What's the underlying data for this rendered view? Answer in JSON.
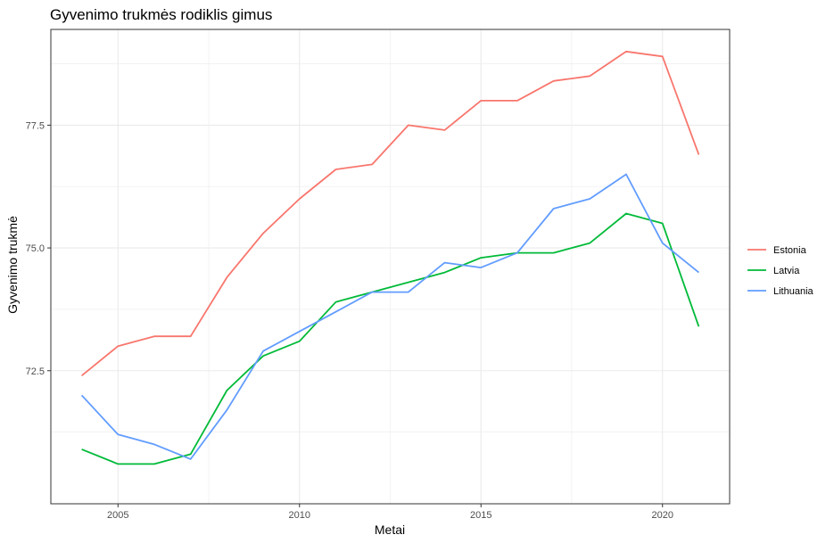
{
  "chart_data": {
    "type": "line",
    "title": "Gyvenimo trukmės rodiklis gimus",
    "xlabel": "Metai",
    "ylabel": "Gyvenimo trukmė",
    "x": [
      2004,
      2005,
      2006,
      2007,
      2008,
      2009,
      2010,
      2011,
      2012,
      2013,
      2014,
      2015,
      2016,
      2017,
      2018,
      2019,
      2020,
      2021
    ],
    "xlim": [
      2003.15,
      2021.85
    ],
    "ylim": [
      69.79,
      79.45
    ],
    "x_ticks": [
      2005,
      2010,
      2015,
      2020
    ],
    "x_tick_labels": [
      "2005",
      "2010",
      "2015",
      "2020"
    ],
    "y_ticks": [
      72.5,
      75.0,
      77.5
    ],
    "y_tick_labels": [
      "72.5",
      "75.0",
      "77.5"
    ],
    "grid": true,
    "legend_position": "right",
    "series": [
      {
        "name": "Estonia",
        "color": "#F8766D",
        "values": [
          72.4,
          73.0,
          73.2,
          73.2,
          74.4,
          75.3,
          76.0,
          76.6,
          76.7,
          77.5,
          77.4,
          78.0,
          78.0,
          78.4,
          78.5,
          79.0,
          78.9,
          76.9
        ]
      },
      {
        "name": "Latvia",
        "color": "#00BA38",
        "values": [
          70.9,
          70.6,
          70.6,
          70.8,
          72.1,
          72.8,
          73.1,
          73.9,
          74.1,
          74.3,
          74.5,
          74.8,
          74.9,
          74.9,
          75.1,
          75.7,
          75.5,
          73.4
        ]
      },
      {
        "name": "Lithuania",
        "color": "#619CFF",
        "values": [
          72.0,
          71.2,
          71.0,
          70.7,
          71.7,
          72.9,
          73.3,
          73.7,
          74.1,
          74.1,
          74.7,
          74.6,
          74.9,
          75.8,
          76.0,
          76.5,
          75.1,
          74.5
        ]
      }
    ]
  }
}
